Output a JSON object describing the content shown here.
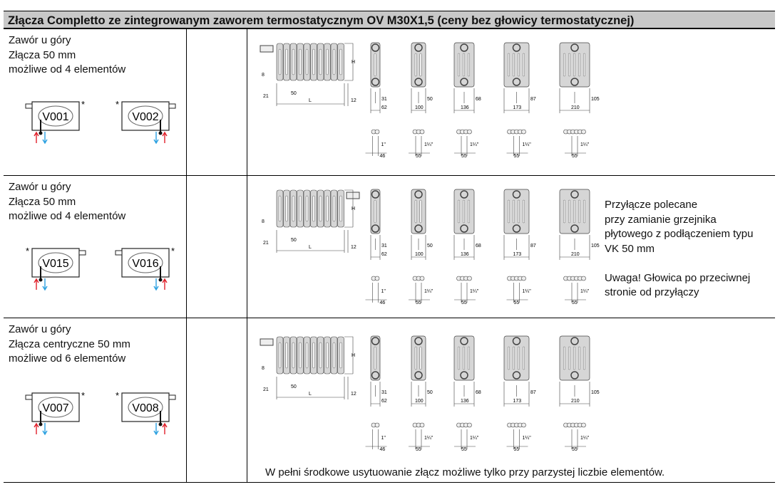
{
  "title": "Złącza Completto ze zintegrowanym zaworem termostatycznym OV M30X1,5 (ceny bez głowicy termostatycznej)",
  "rows": [
    {
      "lines": [
        "Zawór u góry",
        "Złącza 50 mm",
        "możliwe od 4 elementów"
      ],
      "symbols": [
        {
          "code": "V001",
          "star": "*"
        },
        {
          "code": "V002",
          "star": "*"
        }
      ]
    },
    {
      "lines": [
        "Zawór u góry",
        "Złącza 50 mm",
        "możliwe od 4 elementów"
      ],
      "symbols": [
        {
          "code": "V015",
          "star": "*"
        },
        {
          "code": "V016",
          "star": "*"
        }
      ],
      "note": [
        "Przyłącze polecane",
        "przy zamianie grzejnika",
        "płytowego z podłączeniem typu",
        "VK 50 mm",
        "",
        "Uwaga! Głowica po przeciwnej",
        "stronie od przyłączy"
      ]
    },
    {
      "lines": [
        "Zawór u góry",
        "Złącza centryczne 50 mm",
        "możliwe od 6 elementów"
      ],
      "symbols": [
        {
          "code": "V007",
          "star": "*"
        },
        {
          "code": "V008",
          "star": "*"
        }
      ]
    }
  ],
  "drawing": {
    "height_label": "H",
    "length_label": "L",
    "dims": [
      "8",
      "21",
      "50",
      "12"
    ],
    "sections": [
      {
        "half": "31",
        "width": "62",
        "pipe": "1\"",
        "pipe_w": "46"
      },
      {
        "half": "50",
        "width": "100",
        "pipe": "1¼\"",
        "pipe_w": "55"
      },
      {
        "half": "68",
        "width": "136",
        "pipe": "1¼\"",
        "pipe_w": "55"
      },
      {
        "half": "87",
        "width": "173",
        "pipe": "1¼\"",
        "pipe_w": "55"
      },
      {
        "half": "105",
        "width": "210",
        "pipe": "1¼\"",
        "pipe_w": "55"
      }
    ]
  },
  "footnote": "W pełni środkowe usytuowanie złącz możliwe tylko przy parzystej liczbie elementów.",
  "colors": {
    "header_bg": "#c8c8c8",
    "supply": "#e0202a",
    "return": "#2aa0e0"
  }
}
